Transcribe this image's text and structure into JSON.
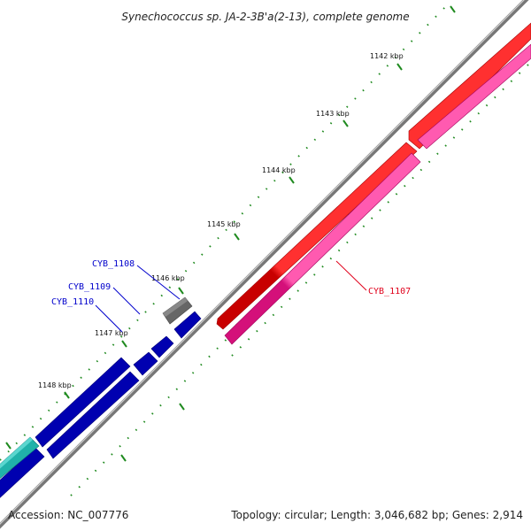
{
  "title": "Synechococcus sp. JA-2-3B'a(2-13), complete genome",
  "footer": {
    "accession": "Accession: NC_007776",
    "summary": "Topology: circular; Length: 3,046,682 bp; Genes: 2,914"
  },
  "colors": {
    "backbone": "#777777",
    "tick": "#1f8a1f",
    "gene_red": "#ff0000",
    "gene_pink": "#ff1493",
    "gene_blue": "#0000ff",
    "gene_gray": "#666666",
    "gene_cyan": "#20b2aa",
    "label_red": "#e0001b",
    "label_blue": "#0000cc"
  },
  "kbp_ticks": [
    "1142 kbp",
    "1143 kbp",
    "1144 kbp",
    "1145 kbp",
    "1146 kbp",
    "1147 kbp",
    "1148 kbp"
  ],
  "gene_labels": {
    "cyb_1108": "CYB_1108",
    "cyb_1109": "CYB_1109",
    "cyb_1110": "CYB_1110",
    "cyb_1107": "CYB_1107"
  }
}
